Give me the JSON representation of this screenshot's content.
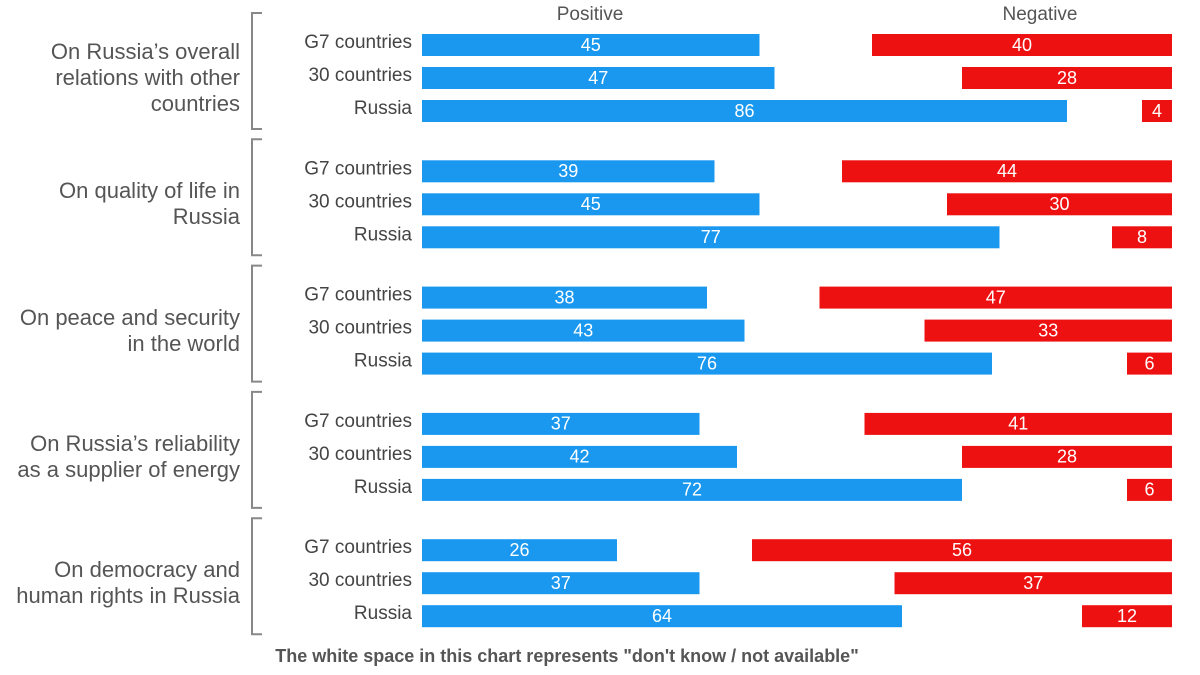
{
  "chart_data": {
    "type": "bar",
    "groups": [
      "On Russia’s overall relations with other countries",
      "On quality of life in Russia",
      "On peace and security in the world",
      "On Russia’s reliability as a supplier of energy",
      "On democracy and human rights in Russia"
    ],
    "categories": [
      "G7 countries",
      "30 countries",
      "Russia",
      "G7 countries",
      "30 countries",
      "Russia",
      "G7 countries",
      "30 countries",
      "Russia",
      "G7 countries",
      "30 countries",
      "Russia",
      "G7 countries",
      "30 countries",
      "Russia"
    ],
    "series": [
      {
        "name": "Positive",
        "color": "#1a98f0",
        "values": [
          45,
          47,
          86,
          39,
          45,
          77,
          38,
          43,
          76,
          37,
          42,
          72,
          26,
          37,
          64
        ]
      },
      {
        "name": "Negative",
        "color": "#ee1111",
        "values": [
          40,
          28,
          4,
          44,
          30,
          8,
          47,
          33,
          6,
          41,
          28,
          6,
          56,
          37,
          12
        ]
      }
    ],
    "xlim": [
      0,
      100
    ],
    "note": "The white space in this chart represents \"don't know / not available\""
  }
}
